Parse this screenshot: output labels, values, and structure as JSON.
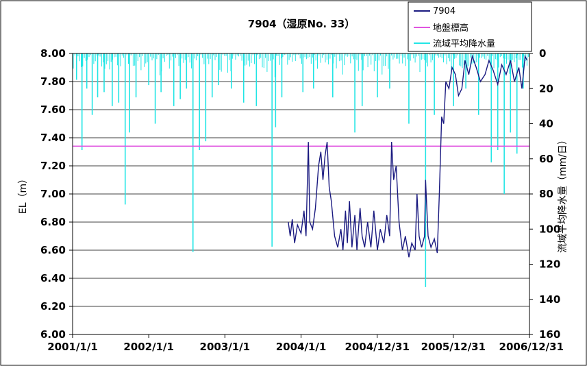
{
  "chart_data": {
    "type": "line",
    "title": "7904（湿原No. 33）",
    "ylabel_left": "EL（m）",
    "ylabel_right": "流域平均降水量（mm/日）",
    "x_ticks": [
      "2001/1/1",
      "2002/1/1",
      "2003/1/1",
      "2004/1/1",
      "2004/12/31",
      "2005/12/31",
      "2006/12/31"
    ],
    "xlim": [
      "2001/1/1",
      "2006/12/31"
    ],
    "ylim_left": [
      6.0,
      8.0
    ],
    "ylim_right": [
      160,
      0
    ],
    "y_ticks_left": [
      "6.00",
      "6.20",
      "6.40",
      "6.60",
      "6.80",
      "7.00",
      "7.20",
      "7.40",
      "7.60",
      "7.80",
      "8.00"
    ],
    "y_ticks_right": [
      "0",
      "20",
      "40",
      "60",
      "80",
      "100",
      "120",
      "140",
      "160"
    ],
    "grid": true,
    "legend_position": "top-right",
    "series": [
      {
        "name": "7904",
        "axis": "left",
        "color": "#1a1a80",
        "points": [
          [
            "2003/11/1",
            6.8
          ],
          [
            "2003/11/10",
            6.7
          ],
          [
            "2003/11/20",
            6.82
          ],
          [
            "2003/12/1",
            6.65
          ],
          [
            "2003/12/15",
            6.78
          ],
          [
            "2004/1/1",
            6.72
          ],
          [
            "2004/1/15",
            6.88
          ],
          [
            "2004/1/25",
            6.7
          ],
          [
            "2004/2/5",
            7.37
          ],
          [
            "2004/2/12",
            6.8
          ],
          [
            "2004/2/25",
            6.75
          ],
          [
            "2004/3/10",
            6.9
          ],
          [
            "2004/3/25",
            7.2
          ],
          [
            "2004/4/5",
            7.3
          ],
          [
            "2004/4/15",
            7.1
          ],
          [
            "2004/4/25",
            7.27
          ],
          [
            "2004/5/5",
            7.37
          ],
          [
            "2004/5/15",
            7.05
          ],
          [
            "2004/5/25",
            6.95
          ],
          [
            "2004/6/10",
            6.7
          ],
          [
            "2004/6/25",
            6.62
          ],
          [
            "2004/7/10",
            6.75
          ],
          [
            "2004/7/20",
            6.6
          ],
          [
            "2004/8/1",
            6.88
          ],
          [
            "2004/8/10",
            6.65
          ],
          [
            "2004/8/20",
            6.95
          ],
          [
            "2004/9/1",
            6.62
          ],
          [
            "2004/9/15",
            6.85
          ],
          [
            "2004/9/25",
            6.6
          ],
          [
            "2004/10/10",
            6.9
          ],
          [
            "2004/10/20",
            6.7
          ],
          [
            "2004/11/1",
            6.62
          ],
          [
            "2004/11/15",
            6.8
          ],
          [
            "2004/12/1",
            6.62
          ],
          [
            "2004/12/15",
            6.88
          ],
          [
            "2005/1/1",
            6.6
          ],
          [
            "2005/1/15",
            6.75
          ],
          [
            "2005/2/1",
            6.65
          ],
          [
            "2005/2/15",
            6.85
          ],
          [
            "2005/3/1",
            6.7
          ],
          [
            "2005/3/10",
            7.37
          ],
          [
            "2005/3/20",
            7.1
          ],
          [
            "2005/4/1",
            7.2
          ],
          [
            "2005/4/15",
            6.8
          ],
          [
            "2005/5/1",
            6.6
          ],
          [
            "2005/5/15",
            6.7
          ],
          [
            "2005/6/1",
            6.55
          ],
          [
            "2005/6/15",
            6.65
          ],
          [
            "2005/7/1",
            6.6
          ],
          [
            "2005/7/10",
            7.0
          ],
          [
            "2005/7/20",
            6.7
          ],
          [
            "2005/8/1",
            6.62
          ],
          [
            "2005/8/15",
            6.7
          ],
          [
            "2005/8/20",
            7.1
          ],
          [
            "2005/9/1",
            6.7
          ],
          [
            "2005/9/15",
            6.62
          ],
          [
            "2005/10/1",
            6.68
          ],
          [
            "2005/10/15",
            6.58
          ],
          [
            "2005/10/25",
            7.0
          ],
          [
            "2005/11/5",
            7.55
          ],
          [
            "2005/11/15",
            7.5
          ],
          [
            "2005/11/25",
            7.8
          ],
          [
            "2005/12/10",
            7.75
          ],
          [
            "2005/12/25",
            7.9
          ],
          [
            "2006/1/10",
            7.85
          ],
          [
            "2006/1/25",
            7.7
          ],
          [
            "2006/2/10",
            7.75
          ],
          [
            "2006/2/25",
            7.95
          ],
          [
            "2006/3/15",
            7.85
          ],
          [
            "2006/4/1",
            7.98
          ],
          [
            "2006/4/20",
            7.9
          ],
          [
            "2006/5/10",
            7.8
          ],
          [
            "2006/6/1",
            7.85
          ],
          [
            "2006/6/20",
            7.95
          ],
          [
            "2006/7/10",
            7.88
          ],
          [
            "2006/8/1",
            7.78
          ],
          [
            "2006/8/20",
            7.92
          ],
          [
            "2006/9/10",
            7.85
          ],
          [
            "2006/10/1",
            7.95
          ],
          [
            "2006/10/20",
            7.8
          ],
          [
            "2006/11/10",
            7.9
          ],
          [
            "2006/11/25",
            7.75
          ],
          [
            "2006/12/10",
            7.98
          ],
          [
            "2006/12/20",
            7.95
          ]
        ]
      },
      {
        "name": "地盤標高",
        "axis": "left",
        "color": "#e055e0",
        "value": 7.34
      },
      {
        "name": "流域平均降水量",
        "axis": "right",
        "color": "#22e5e5",
        "note": "daily bars from top",
        "points": [
          [
            "2001/1/20",
            15
          ],
          [
            "2001/2/15",
            55
          ],
          [
            "2001/3/10",
            20
          ],
          [
            "2001/4/5",
            35
          ],
          [
            "2001/5/1",
            25
          ],
          [
            "2001/6/1",
            22
          ],
          [
            "2001/7/10",
            30
          ],
          [
            "2001/8/10",
            28
          ],
          [
            "2001/9/10",
            86
          ],
          [
            "2001/10/1",
            45
          ],
          [
            "2001/11/1",
            25
          ],
          [
            "2002/1/1",
            18
          ],
          [
            "2002/2/1",
            40
          ],
          [
            "2002/3/1",
            22
          ],
          [
            "2002/5/1",
            30
          ],
          [
            "2002/6/1",
            26
          ],
          [
            "2002/7/1",
            20
          ],
          [
            "2002/8/1",
            113
          ],
          [
            "2002/9/1",
            55
          ],
          [
            "2002/10/1",
            50
          ],
          [
            "2002/11/1",
            25
          ],
          [
            "2002/12/1",
            18
          ],
          [
            "2003/2/1",
            20
          ],
          [
            "2003/4/1",
            28
          ],
          [
            "2003/6/1",
            30
          ],
          [
            "2003/8/15",
            110
          ],
          [
            "2003/9/1",
            42
          ],
          [
            "2003/10/1",
            25
          ],
          [
            "2004/1/10",
            22
          ],
          [
            "2004/3/1",
            20
          ],
          [
            "2004/6/1",
            25
          ],
          [
            "2004/9/15",
            45
          ],
          [
            "2004/10/20",
            30
          ],
          [
            "2005/1/1",
            25
          ],
          [
            "2005/3/1",
            20
          ],
          [
            "2005/6/1",
            40
          ],
          [
            "2005/8/20",
            133
          ],
          [
            "2005/10/1",
            35
          ],
          [
            "2006/1/1",
            30
          ],
          [
            "2006/3/1",
            20
          ],
          [
            "2006/5/1",
            35
          ],
          [
            "2006/7/1",
            62
          ],
          [
            "2006/8/1",
            55
          ],
          [
            "2006/9/1",
            80
          ],
          [
            "2006/10/1",
            45
          ],
          [
            "2006/11/1",
            57
          ],
          [
            "2006/12/1",
            20
          ]
        ]
      }
    ]
  }
}
